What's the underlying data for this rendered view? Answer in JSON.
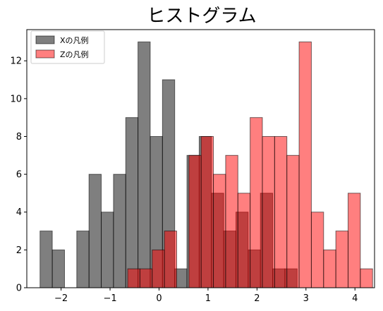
{
  "chart_data": {
    "type": "bar",
    "title": "ヒストグラム",
    "xlabel": "",
    "ylabel": "",
    "xlim": [
      -2.7,
      4.4
    ],
    "ylim": [
      0,
      13.65
    ],
    "x_ticks": [
      -2,
      -1,
      0,
      1,
      2,
      3,
      4
    ],
    "x_tick_labels": [
      "−2",
      "−1",
      "0",
      "1",
      "2",
      "3",
      "4"
    ],
    "y_ticks": [
      0,
      2,
      4,
      6,
      8,
      10,
      12
    ],
    "y_tick_labels": [
      "0",
      "2",
      "4",
      "6",
      "8",
      "10",
      "12"
    ],
    "grid": false,
    "legend": "top-left",
    "series": [
      {
        "name": "Xの凡例",
        "color": "#808080",
        "bins": [
          {
            "x0": -2.43,
            "x1": -2.18,
            "count": 3
          },
          {
            "x0": -2.18,
            "x1": -1.93,
            "count": 2
          },
          {
            "x0": -1.93,
            "x1": -1.68,
            "count": 0
          },
          {
            "x0": -1.68,
            "x1": -1.43,
            "count": 3
          },
          {
            "x0": -1.43,
            "x1": -1.18,
            "count": 6
          },
          {
            "x0": -1.18,
            "x1": -0.93,
            "count": 4
          },
          {
            "x0": -0.93,
            "x1": -0.68,
            "count": 6
          },
          {
            "x0": -0.68,
            "x1": -0.43,
            "count": 9
          },
          {
            "x0": -0.43,
            "x1": -0.18,
            "count": 13
          },
          {
            "x0": -0.18,
            "x1": 0.07,
            "count": 8
          },
          {
            "x0": 0.07,
            "x1": 0.32,
            "count": 11
          },
          {
            "x0": 0.32,
            "x1": 0.57,
            "count": 1
          },
          {
            "x0": 0.57,
            "x1": 0.82,
            "count": 7
          },
          {
            "x0": 0.82,
            "x1": 1.07,
            "count": 8
          },
          {
            "x0": 1.07,
            "x1": 1.32,
            "count": 5
          },
          {
            "x0": 1.32,
            "x1": 1.57,
            "count": 3
          },
          {
            "x0": 1.57,
            "x1": 1.82,
            "count": 4
          },
          {
            "x0": 1.82,
            "x1": 2.07,
            "count": 2
          },
          {
            "x0": 2.07,
            "x1": 2.32,
            "count": 5
          },
          {
            "x0": 2.32,
            "x1": 2.57,
            "count": 1
          },
          {
            "x0": 2.57,
            "x1": 2.82,
            "count": 1
          }
        ]
      },
      {
        "name": "Zの凡例",
        "color": "#ff0000",
        "bins": [
          {
            "x0": -0.64,
            "x1": -0.39,
            "count": 1
          },
          {
            "x0": -0.39,
            "x1": -0.14,
            "count": 1
          },
          {
            "x0": -0.14,
            "x1": 0.11,
            "count": 2
          },
          {
            "x0": 0.11,
            "x1": 0.36,
            "count": 3
          },
          {
            "x0": 0.36,
            "x1": 0.61,
            "count": 0
          },
          {
            "x0": 0.61,
            "x1": 0.86,
            "count": 7
          },
          {
            "x0": 0.86,
            "x1": 1.11,
            "count": 8
          },
          {
            "x0": 1.11,
            "x1": 1.36,
            "count": 6
          },
          {
            "x0": 1.36,
            "x1": 1.61,
            "count": 7
          },
          {
            "x0": 1.61,
            "x1": 1.86,
            "count": 5
          },
          {
            "x0": 1.86,
            "x1": 2.11,
            "count": 9
          },
          {
            "x0": 2.11,
            "x1": 2.36,
            "count": 8
          },
          {
            "x0": 2.36,
            "x1": 2.61,
            "count": 8
          },
          {
            "x0": 2.61,
            "x1": 2.86,
            "count": 7
          },
          {
            "x0": 2.86,
            "x1": 3.11,
            "count": 13
          },
          {
            "x0": 3.11,
            "x1": 3.36,
            "count": 4
          },
          {
            "x0": 3.36,
            "x1": 3.61,
            "count": 2
          },
          {
            "x0": 3.61,
            "x1": 3.86,
            "count": 3
          },
          {
            "x0": 3.86,
            "x1": 4.11,
            "count": 5
          },
          {
            "x0": 4.11,
            "x1": 4.36,
            "count": 1
          }
        ]
      }
    ]
  }
}
